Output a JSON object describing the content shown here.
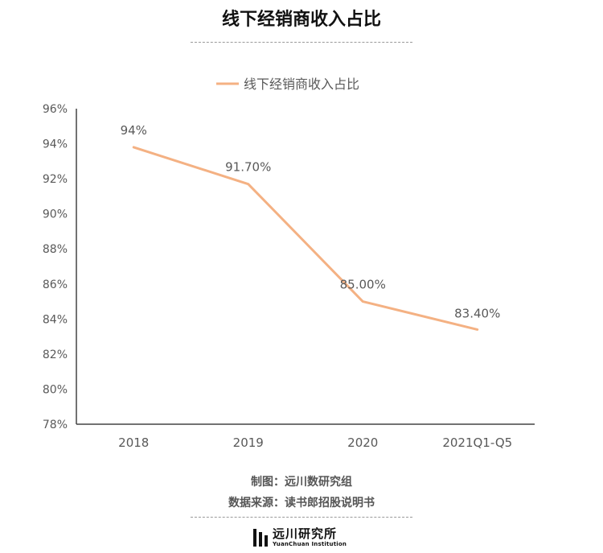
{
  "page": {
    "title": "线下经销商收入占比",
    "credit_line": "制图：远川数研究组",
    "source_line": "数据来源：读书郎招股说明书",
    "logo_cn": "远川研究所",
    "logo_en": "YuanChuan Institution"
  },
  "chart_data": {
    "type": "line",
    "title": "线下经销商收入占比",
    "categories": [
      "2018",
      "2019",
      "2020",
      "2021Q1-Q5"
    ],
    "series": [
      {
        "name": "线下经销商收入占比",
        "values": [
          93.8,
          91.7,
          85.0,
          83.4
        ],
        "labels": [
          "94%",
          "91.70%",
          "85.00%",
          "83.40%"
        ]
      }
    ],
    "ylim": [
      78,
      96
    ],
    "yticks": [
      "78%",
      "80%",
      "82%",
      "84%",
      "86%",
      "88%",
      "90%",
      "92%",
      "94%",
      "96%"
    ],
    "grid": false,
    "legend_position": "top",
    "colors": {
      "series": "#F4B183",
      "axis": "#444444",
      "text": "#595959"
    }
  }
}
